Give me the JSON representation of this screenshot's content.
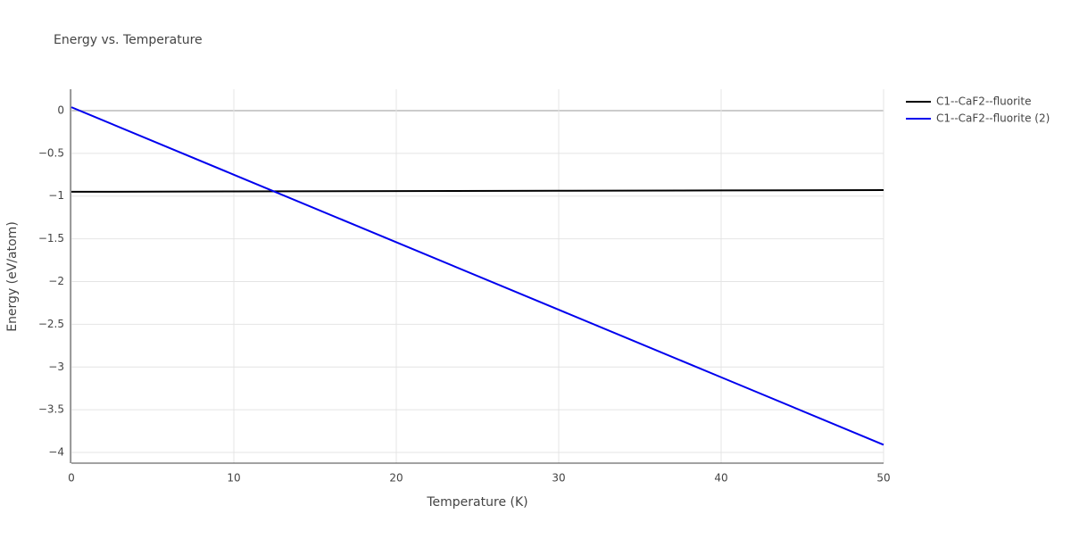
{
  "chart_data": {
    "type": "line",
    "title": "Energy vs. Temperature",
    "x_label": "Temperature (K)",
    "y_label": "Energy (eV/atom)",
    "x": [
      0,
      10,
      20,
      30,
      40,
      50
    ],
    "series": [
      {
        "name": "C1--CaF2--fluorite",
        "color": "#000000",
        "values": [
          -0.95,
          -0.946,
          -0.942,
          -0.938,
          -0.934,
          -0.93
        ]
      },
      {
        "name": "C1--CaF2--fluorite (2)",
        "color": "#0000ee",
        "values": [
          0.04,
          -0.75,
          -1.54,
          -2.33,
          -3.12,
          -3.91
        ]
      }
    ],
    "xlim": [
      0,
      50
    ],
    "xticks": [
      0,
      10,
      20,
      30,
      40,
      50
    ],
    "ylim": [
      -4.125,
      0.25
    ],
    "yticks": [
      0,
      {
        "value": -0.5,
        "label": "−0.5"
      },
      {
        "value": -1,
        "label": "−1"
      },
      {
        "value": -1.5,
        "label": "−1.5"
      },
      {
        "value": -2,
        "label": "−2"
      },
      {
        "value": -2.5,
        "label": "−2.5"
      },
      {
        "value": -3,
        "label": "−3"
      },
      {
        "value": -3.5,
        "label": "−3.5"
      },
      {
        "value": -4,
        "label": "−4"
      }
    ],
    "grid": true,
    "legend": "top-right"
  }
}
